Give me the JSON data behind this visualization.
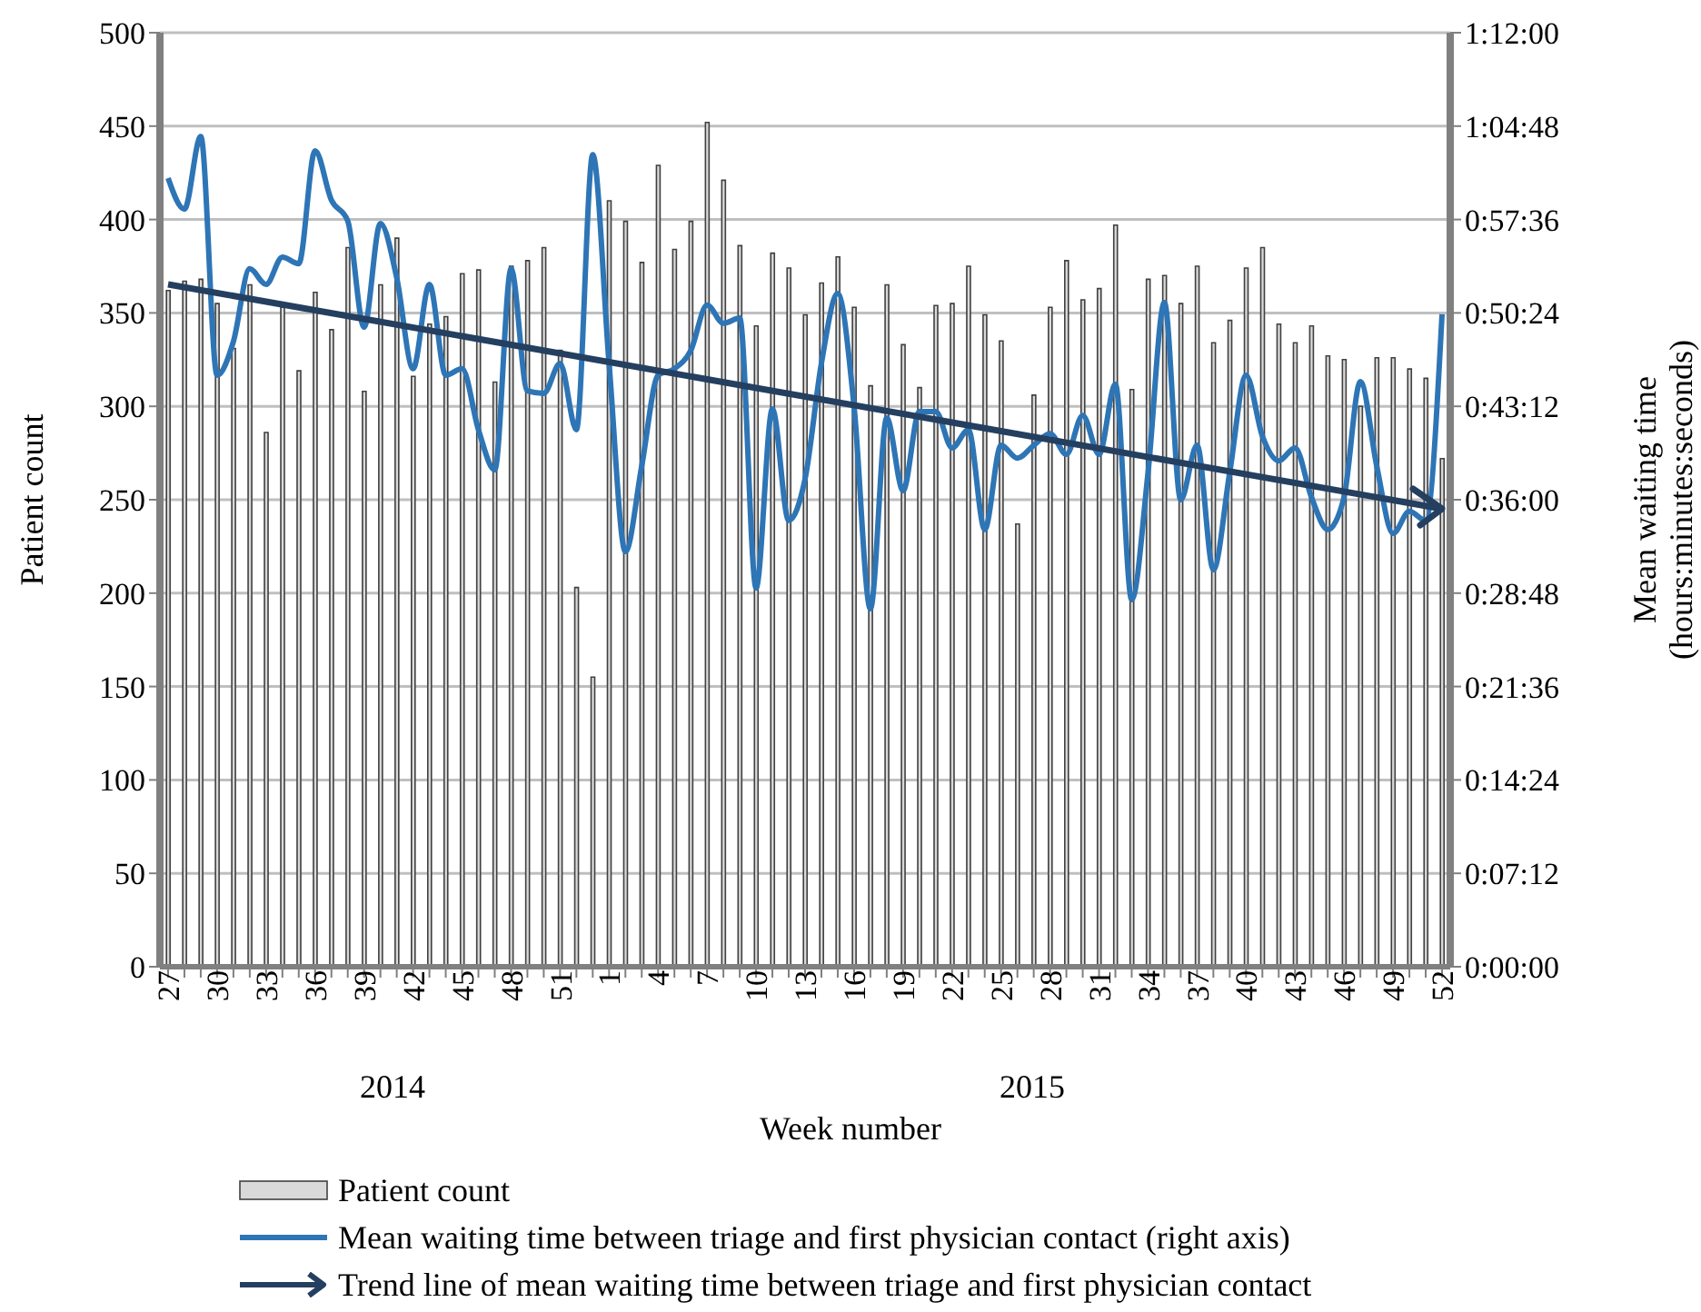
{
  "chart_data": {
    "type": "bar",
    "xlabel": "Week number",
    "ylabel": "Patient count",
    "y2label": "Mean waiting time (hours:minutes:seconds)",
    "annotations": [
      "2014",
      "2015"
    ],
    "categories": [
      "27",
      null,
      null,
      "30",
      null,
      null,
      "33",
      null,
      null,
      "36",
      null,
      null,
      "39",
      null,
      null,
      "42",
      null,
      null,
      "45",
      null,
      null,
      "48",
      null,
      null,
      "51",
      null,
      null,
      "1",
      null,
      null,
      "4",
      null,
      null,
      "7",
      null,
      null,
      "10",
      null,
      null,
      "13",
      null,
      null,
      "16",
      null,
      null,
      "19",
      null,
      null,
      "22",
      null,
      null,
      "25",
      null,
      null,
      "28",
      null,
      null,
      "31",
      null,
      null,
      "34",
      null,
      null,
      "37",
      null,
      null,
      "40",
      null,
      null,
      "43",
      null,
      null,
      "46",
      null,
      null,
      "49",
      null,
      null,
      "52"
    ],
    "series": [
      {
        "name": "Patient count",
        "color": "#d9d9d9",
        "values": [
          362,
          367,
          368,
          355,
          331,
          365,
          286,
          353,
          319,
          361,
          341,
          385,
          308,
          365,
          390,
          316,
          344,
          348,
          371,
          373,
          313,
          375,
          378,
          385,
          330,
          203,
          155,
          410,
          399,
          377,
          429,
          384,
          399,
          452,
          421,
          386,
          343,
          382,
          374,
          349,
          366,
          380,
          353,
          311,
          365,
          333,
          310,
          354,
          355,
          375,
          349,
          335,
          237,
          306,
          353,
          378,
          357,
          363,
          397,
          309,
          368,
          370,
          355,
          375,
          334,
          346,
          374,
          385,
          344,
          334,
          343,
          327,
          325,
          300,
          326,
          326,
          320,
          315,
          272
        ]
      },
      {
        "name": "Mean waiting time between triage and first physician contact (right axis)",
        "type": "line",
        "axis": "y2",
        "color": "#2e75b6",
        "values": [
          60.8,
          58.4,
          64.0,
          45.6,
          48.2,
          53.8,
          52.6,
          54.7,
          54.2,
          62.9,
          59.1,
          57.5,
          49.3,
          57.3,
          53.1,
          46.1,
          52.6,
          45.6,
          46.1,
          41.4,
          38.3,
          53.8,
          44.4,
          44.2,
          46.5,
          41.4,
          62.6,
          46.5,
          32.0,
          38.6,
          45.6,
          46.1,
          47.5,
          51.0,
          49.6,
          50.0,
          29.2,
          43.0,
          34.4,
          37.6,
          46.5,
          51.9,
          43.2,
          27.6,
          42.3,
          36.7,
          42.8,
          42.8,
          40.0,
          41.4,
          33.7,
          40.2,
          39.2,
          40.2,
          41.1,
          39.5,
          42.5,
          39.5,
          44.9,
          28.3,
          38.1,
          51.2,
          36.0,
          40.2,
          30.6,
          38.1,
          45.6,
          40.9,
          39.0,
          40.0,
          36.2,
          33.7,
          36.2,
          45.1,
          38.6,
          33.4,
          35.1,
          34.4,
          50.3
        ]
      },
      {
        "name": "Trend line of mean waiting time between triage and first physician contact",
        "type": "line",
        "axis": "y2",
        "color": "#243f60",
        "values": [
          52.6,
          null,
          null,
          null,
          null,
          null,
          null,
          null,
          null,
          null,
          null,
          null,
          null,
          null,
          null,
          null,
          null,
          null,
          null,
          null,
          null,
          null,
          null,
          null,
          null,
          null,
          null,
          null,
          null,
          null,
          null,
          null,
          null,
          null,
          null,
          null,
          null,
          null,
          null,
          null,
          null,
          null,
          null,
          null,
          null,
          null,
          null,
          null,
          null,
          null,
          null,
          null,
          null,
          null,
          null,
          null,
          null,
          null,
          null,
          null,
          null,
          null,
          null,
          null,
          null,
          null,
          null,
          null,
          null,
          null,
          null,
          null,
          null,
          null,
          null,
          null,
          null,
          null,
          35.3
        ]
      }
    ],
    "ylim": [
      0,
      500
    ],
    "yticks": [
      0,
      50,
      100,
      150,
      200,
      250,
      300,
      350,
      400,
      450,
      500
    ],
    "y2lim": [
      0,
      72
    ],
    "y2ticks": [
      {
        "value": 0,
        "label": "0:00:00"
      },
      {
        "value": 7.2,
        "label": "0:07:12"
      },
      {
        "value": 14.4,
        "label": "0:14:24"
      },
      {
        "value": 21.6,
        "label": "0:21:36"
      },
      {
        "value": 28.8,
        "label": "0:28:48"
      },
      {
        "value": 36,
        "label": "0:36:00"
      },
      {
        "value": 43.2,
        "label": "0:43:12"
      },
      {
        "value": 50.4,
        "label": "0:50:24"
      },
      {
        "value": 57.6,
        "label": "0:57:36"
      },
      {
        "value": 64.8,
        "label": "1:04:48"
      },
      {
        "value": 72,
        "label": "1:12:00"
      }
    ],
    "grid": "y",
    "legend": "bottom",
    "marker": "none",
    "line_style": "solid"
  }
}
